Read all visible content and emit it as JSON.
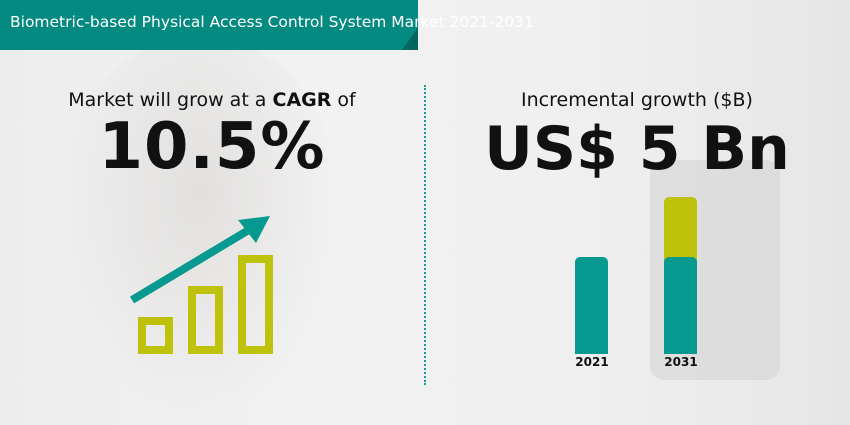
{
  "banner": {
    "title": "Biometric-based Physical Access Control System Market 2021-2031"
  },
  "left": {
    "label_prefix": "Market will grow at a ",
    "label_bold": "CAGR",
    "label_suffix": " of",
    "value": "10.5%",
    "icon": "growth-bars-arrow-icon"
  },
  "right": {
    "label": "Incremental growth ($B)",
    "value": "US$ 5 Bn"
  },
  "chart": {
    "categories": [
      "2021",
      "2031"
    ],
    "base_share": [
      1,
      1
    ],
    "incremental_share": [
      0,
      0.62
    ]
  },
  "colors": {
    "teal": "#06998f",
    "olive": "#bfc20a",
    "banner": "#048a80"
  }
}
